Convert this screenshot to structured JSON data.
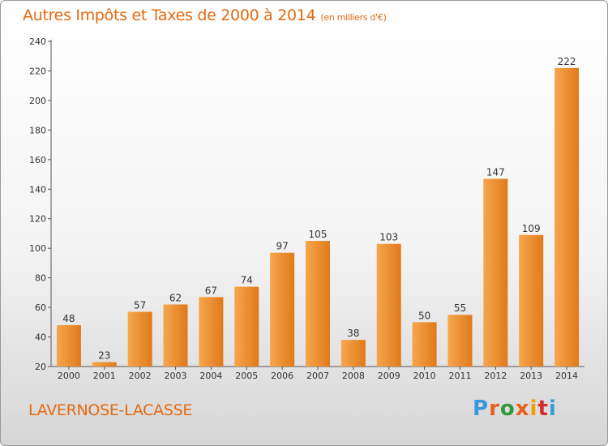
{
  "header": {
    "title": "Autres Impôts et Taxes de 2000 à 2014",
    "unit": "(en milliers d'€)"
  },
  "footer": {
    "commune": "LAVERNOSE-LACASSE",
    "logo_letters": [
      "P",
      "r",
      "o",
      "x",
      "i",
      "t",
      "i"
    ],
    "logo_colors": [
      "#3a9ad9",
      "#e8611a",
      "#2f9a3a",
      "#e8611a",
      "#f0a000",
      "#d62b2b",
      "#3a9ad9"
    ]
  },
  "colors": {
    "title": "#e26a10",
    "bar_light": "#f6a64e",
    "bar_dark": "#e07a1a"
  },
  "chart_data": {
    "type": "bar",
    "title": "Autres Impôts et Taxes de 2000 à 2014",
    "subtitle": "(en milliers d'€)",
    "xlabel": "",
    "ylabel": "",
    "categories": [
      "2000",
      "2001",
      "2002",
      "2003",
      "2004",
      "2005",
      "2006",
      "2007",
      "2008",
      "2009",
      "2010",
      "2011",
      "2012",
      "2013",
      "2014"
    ],
    "values": [
      48,
      23,
      57,
      62,
      67,
      74,
      97,
      105,
      38,
      103,
      50,
      55,
      147,
      109,
      222
    ],
    "ylim": [
      20,
      240
    ],
    "yticks": [
      20,
      40,
      60,
      80,
      100,
      120,
      140,
      160,
      180,
      200,
      220,
      240
    ],
    "grid": false,
    "legend": "none"
  }
}
